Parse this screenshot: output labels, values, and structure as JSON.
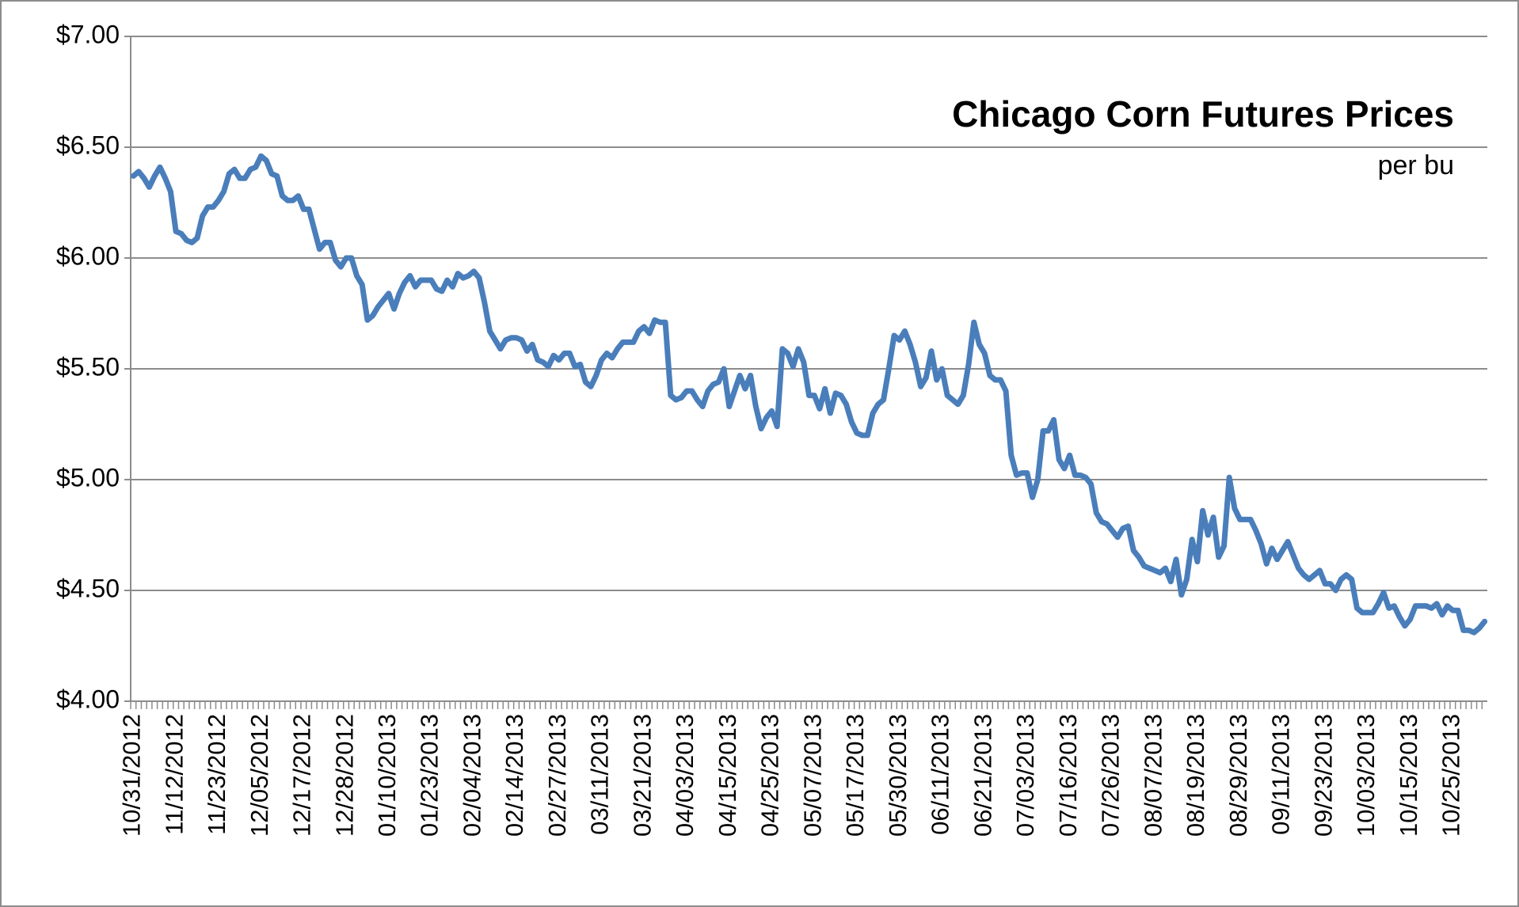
{
  "chart_data": {
    "type": "line",
    "title": "Chicago Corn Futures Prices",
    "subtitle": "per bu",
    "color": "#4a7ebb",
    "grid": true,
    "ylim": [
      4,
      7
    ],
    "yticks": [
      {
        "value": 4,
        "label": "$4.00"
      },
      {
        "value": 4.5,
        "label": "$4.50"
      },
      {
        "value": 5,
        "label": "$5.00"
      },
      {
        "value": 5.5,
        "label": "$5.50"
      },
      {
        "value": 6,
        "label": "$6.00"
      },
      {
        "value": 6.5,
        "label": "$6.50"
      },
      {
        "value": 7,
        "label": "$7.00"
      }
    ],
    "categories": [
      "10/31/2012",
      null,
      null,
      null,
      null,
      null,
      null,
      null,
      "11/12/2012",
      null,
      null,
      null,
      null,
      null,
      null,
      null,
      "11/23/2012",
      null,
      null,
      null,
      null,
      null,
      null,
      null,
      "12/05/2012",
      null,
      null,
      null,
      null,
      null,
      null,
      null,
      "12/17/2012",
      null,
      null,
      null,
      null,
      null,
      null,
      null,
      "12/28/2012",
      null,
      null,
      null,
      null,
      null,
      null,
      null,
      "01/10/2013",
      null,
      null,
      null,
      null,
      null,
      null,
      null,
      "01/23/2013",
      null,
      null,
      null,
      null,
      null,
      null,
      null,
      "02/04/2013",
      null,
      null,
      null,
      null,
      null,
      null,
      null,
      "02/14/2013",
      null,
      null,
      null,
      null,
      null,
      null,
      null,
      "02/27/2013",
      null,
      null,
      null,
      null,
      null,
      null,
      null,
      "03/11/2013",
      null,
      null,
      null,
      null,
      null,
      null,
      null,
      "03/21/2013",
      null,
      null,
      null,
      null,
      null,
      null,
      null,
      "04/03/2013",
      null,
      null,
      null,
      null,
      null,
      null,
      null,
      "04/15/2013",
      null,
      null,
      null,
      null,
      null,
      null,
      null,
      "04/25/2013",
      null,
      null,
      null,
      null,
      null,
      null,
      null,
      "05/07/2013",
      null,
      null,
      null,
      null,
      null,
      null,
      null,
      "05/17/2013",
      null,
      null,
      null,
      null,
      null,
      null,
      null,
      "05/30/2013",
      null,
      null,
      null,
      null,
      null,
      null,
      null,
      "06/11/2013",
      null,
      null,
      null,
      null,
      null,
      null,
      null,
      "06/21/2013",
      null,
      null,
      null,
      null,
      null,
      null,
      null,
      "07/03/2013",
      null,
      null,
      null,
      null,
      null,
      null,
      null,
      "07/16/2013",
      null,
      null,
      null,
      null,
      null,
      null,
      null,
      "07/26/2013",
      null,
      null,
      null,
      null,
      null,
      null,
      null,
      "08/07/2013",
      null,
      null,
      null,
      null,
      null,
      null,
      null,
      "08/19/2013",
      null,
      null,
      null,
      null,
      null,
      null,
      null,
      "08/29/2013",
      null,
      null,
      null,
      null,
      null,
      null,
      null,
      "09/11/2013",
      null,
      null,
      null,
      null,
      null,
      null,
      null,
      "09/23/2013",
      null,
      null,
      null,
      null,
      null,
      null,
      null,
      "10/03/2013",
      null,
      null,
      null,
      null,
      null,
      null,
      null,
      "10/15/2013",
      null,
      null,
      null,
      null,
      null,
      null,
      null,
      "10/25/2013",
      null,
      null,
      null,
      null,
      null,
      null
    ],
    "values": [
      6.37,
      6.39,
      6.36,
      6.32,
      6.37,
      6.41,
      6.36,
      6.3,
      6.12,
      6.11,
      6.08,
      6.07,
      6.09,
      6.19,
      6.23,
      6.23,
      6.26,
      6.3,
      6.38,
      6.4,
      6.36,
      6.36,
      6.4,
      6.41,
      6.46,
      6.44,
      6.38,
      6.37,
      6.28,
      6.26,
      6.26,
      6.28,
      6.22,
      6.22,
      6.13,
      6.04,
      6.07,
      6.07,
      5.99,
      5.96,
      6.0,
      6.0,
      5.92,
      5.88,
      5.72,
      5.74,
      5.78,
      5.81,
      5.84,
      5.77,
      5.84,
      5.89,
      5.92,
      5.87,
      5.9,
      5.9,
      5.9,
      5.86,
      5.85,
      5.9,
      5.87,
      5.93,
      5.91,
      5.92,
      5.94,
      5.91,
      5.8,
      5.67,
      5.63,
      5.59,
      5.63,
      5.64,
      5.64,
      5.63,
      5.58,
      5.61,
      5.54,
      5.53,
      5.51,
      5.56,
      5.54,
      5.57,
      5.57,
      5.51,
      5.52,
      5.44,
      5.42,
      5.47,
      5.54,
      5.57,
      5.55,
      5.59,
      5.62,
      5.62,
      5.62,
      5.67,
      5.69,
      5.66,
      5.72,
      5.71,
      5.71,
      5.38,
      5.36,
      5.37,
      5.4,
      5.4,
      5.36,
      5.33,
      5.4,
      5.43,
      5.44,
      5.5,
      5.33,
      5.4,
      5.47,
      5.41,
      5.47,
      5.33,
      5.23,
      5.28,
      5.31,
      5.24,
      5.59,
      5.57,
      5.51,
      5.59,
      5.53,
      5.38,
      5.38,
      5.32,
      5.41,
      5.3,
      5.39,
      5.38,
      5.34,
      5.26,
      5.21,
      5.2,
      5.2,
      5.3,
      5.34,
      5.36,
      5.5,
      5.65,
      5.63,
      5.67,
      5.61,
      5.53,
      5.42,
      5.46,
      5.58,
      5.45,
      5.5,
      5.38,
      5.36,
      5.34,
      5.38,
      5.52,
      5.71,
      5.61,
      5.57,
      5.47,
      5.45,
      5.45,
      5.4,
      5.11,
      5.02,
      5.03,
      5.03,
      4.92,
      5.0,
      5.22,
      5.22,
      5.27,
      5.09,
      5.05,
      5.11,
      5.02,
      5.02,
      5.01,
      4.98,
      4.85,
      4.81,
      4.8,
      4.77,
      4.74,
      4.78,
      4.79,
      4.68,
      4.65,
      4.61,
      4.6,
      4.59,
      4.58,
      4.6,
      4.54,
      4.64,
      4.48,
      4.55,
      4.73,
      4.63,
      4.86,
      4.75,
      4.83,
      4.65,
      4.7,
      5.01,
      4.87,
      4.82,
      4.82,
      4.82,
      4.77,
      4.71,
      4.62,
      4.69,
      4.64,
      4.68,
      4.72,
      4.66,
      4.6,
      4.57,
      4.55,
      4.57,
      4.59,
      4.53,
      4.53,
      4.5,
      4.55,
      4.57,
      4.55,
      4.42,
      4.4,
      4.4,
      4.4,
      4.44,
      4.49,
      4.42,
      4.43,
      4.38,
      4.34,
      4.37,
      4.43,
      4.43,
      4.43,
      4.42,
      4.44,
      4.39,
      4.43,
      4.41,
      4.41,
      4.32,
      4.32,
      4.31,
      4.33,
      4.36
    ]
  }
}
